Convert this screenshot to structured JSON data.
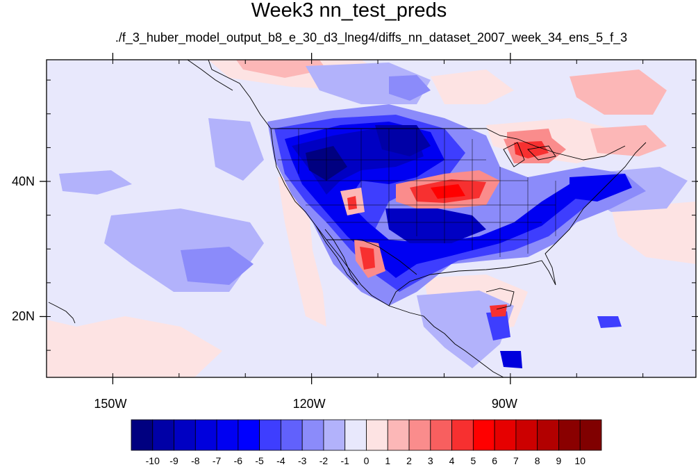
{
  "map": {
    "title": "Week3 nn_test_preds",
    "subtitle": "./f_3_huber_model_output_b8_e_30_d3_lneg4/diffs_nn_dataset_2007_week_34_ens_5_f_3",
    "lon_range": [
      -160,
      -62
    ],
    "lat_range": [
      11,
      58
    ],
    "lon_ticks": [
      {
        "value": -150,
        "label": "150W"
      },
      {
        "value": -120,
        "label": "120W"
      },
      {
        "value": -90,
        "label": "90W"
      }
    ],
    "lat_ticks": [
      {
        "value": 40,
        "label": "40N"
      },
      {
        "value": 20,
        "label": "20N"
      }
    ],
    "background_color": "#e8e8fc"
  },
  "colorbar": {
    "labels": [
      "-10",
      "-9",
      "-8",
      "-7",
      "-6",
      "-5",
      "-4",
      "-3",
      "-2",
      "-1",
      "0",
      "1",
      "2",
      "3",
      "4",
      "5",
      "6",
      "7",
      "8",
      "9",
      "10"
    ],
    "colors": [
      "#000080",
      "#0000a6",
      "#0000c3",
      "#0000dd",
      "#0000f2",
      "#0000ff",
      "#3e3efe",
      "#6161fc",
      "#8b8bfa",
      "#b2b2fb",
      "#e8e8fc",
      "#fde3e3",
      "#fcb7b7",
      "#fa8c8c",
      "#f85f5f",
      "#f73030",
      "#ff0000",
      "#e60000",
      "#cc0000",
      "#b20000",
      "#8a0000",
      "#800000"
    ]
  }
}
